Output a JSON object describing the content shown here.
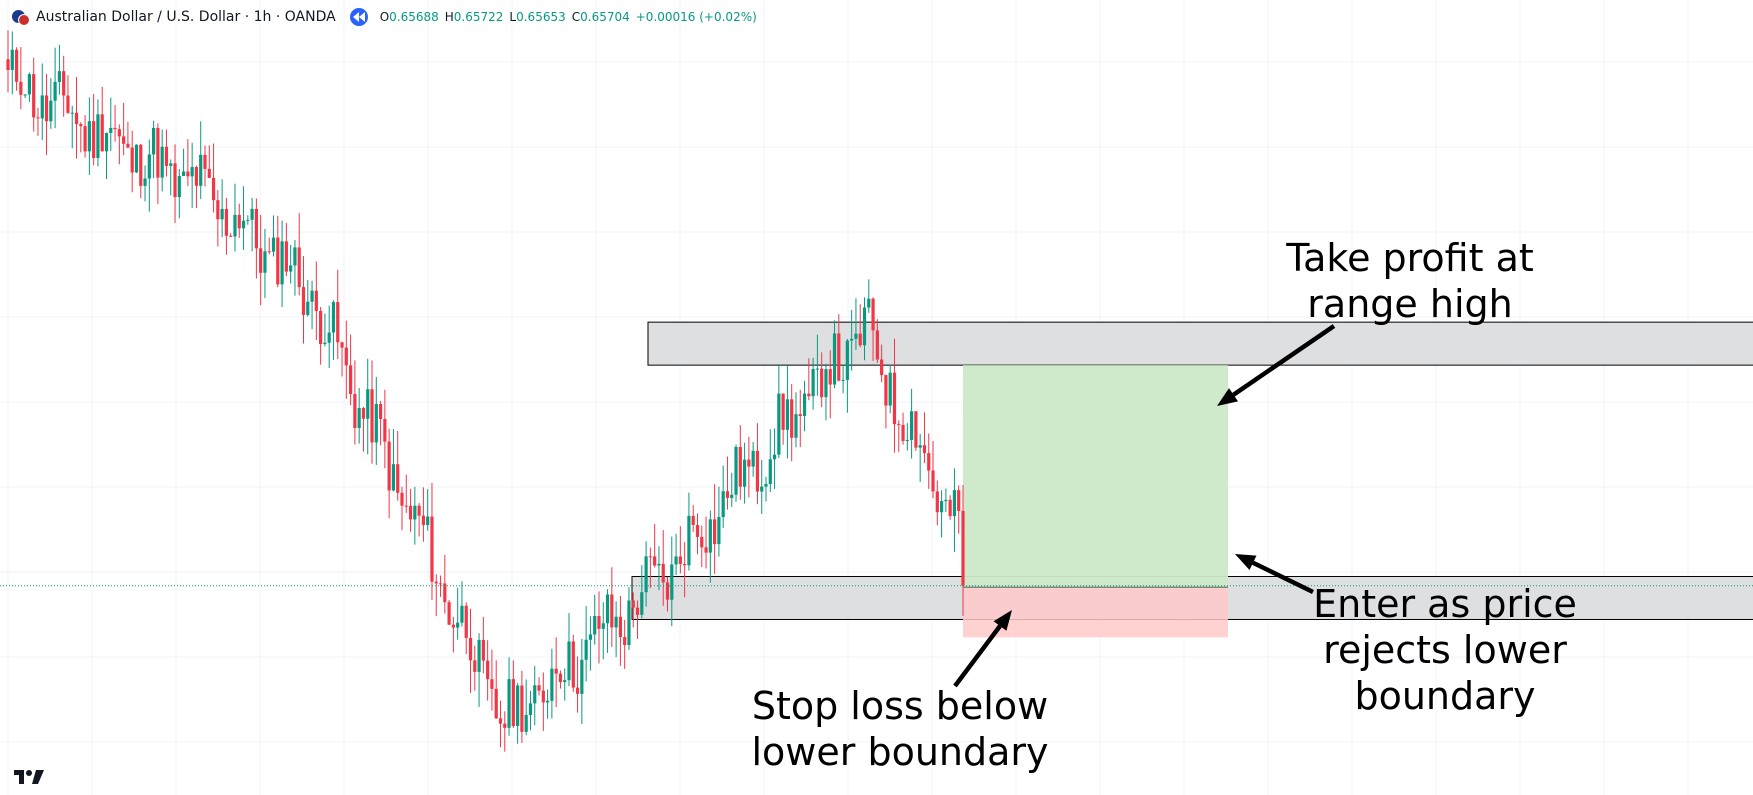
{
  "header": {
    "symbol": "Australian Dollar / U.S. Dollar · 1h · OANDA",
    "ohlc": [
      {
        "label": "O",
        "value": "0.65688"
      },
      {
        "label": "H",
        "value": "0.65722"
      },
      {
        "label": "L",
        "value": "0.65653"
      },
      {
        "label": "C",
        "value": "0.65704"
      }
    ],
    "change": "+0.00016 (+0.02%)"
  },
  "icons": {
    "flag": "aud-usd-flag-icon",
    "replay": "replay-icon",
    "logo": "tradingview-logo"
  },
  "colors": {
    "up": "#089981",
    "down": "#f23645",
    "zone_fill": "#dedfe1",
    "profit_fill": "#cbe9c8",
    "stop_fill": "#ffc9c9",
    "replay": "#2962ff",
    "price_line": "#089981"
  },
  "annotations": {
    "take_profit": [
      "Take profit at",
      "range high"
    ],
    "entry": [
      "Enter as price",
      "rejects lower",
      "boundary"
    ],
    "stop_loss": [
      "Stop loss below",
      "lower boundary"
    ]
  },
  "chart_data": {
    "type": "candlestick",
    "title": "Australian Dollar / U.S. Dollar · 1h · OANDA",
    "grid": true,
    "ylim": [
      0.6512,
      0.6725
    ],
    "last_close": 0.65704,
    "anchor_prices": [
      0.6712,
      0.668,
      0.6654,
      0.6532,
      0.6572,
      0.6642,
      0.658,
      0.657
    ],
    "zones": [
      {
        "name": "range high",
        "low": 0.6632,
        "high": 0.6644
      },
      {
        "name": "lower boundary",
        "low": 0.6561,
        "high": 0.6573
      }
    ],
    "position": {
      "entry": 0.657,
      "take_profit": 0.6632,
      "stop_loss": 0.6556
    }
  }
}
